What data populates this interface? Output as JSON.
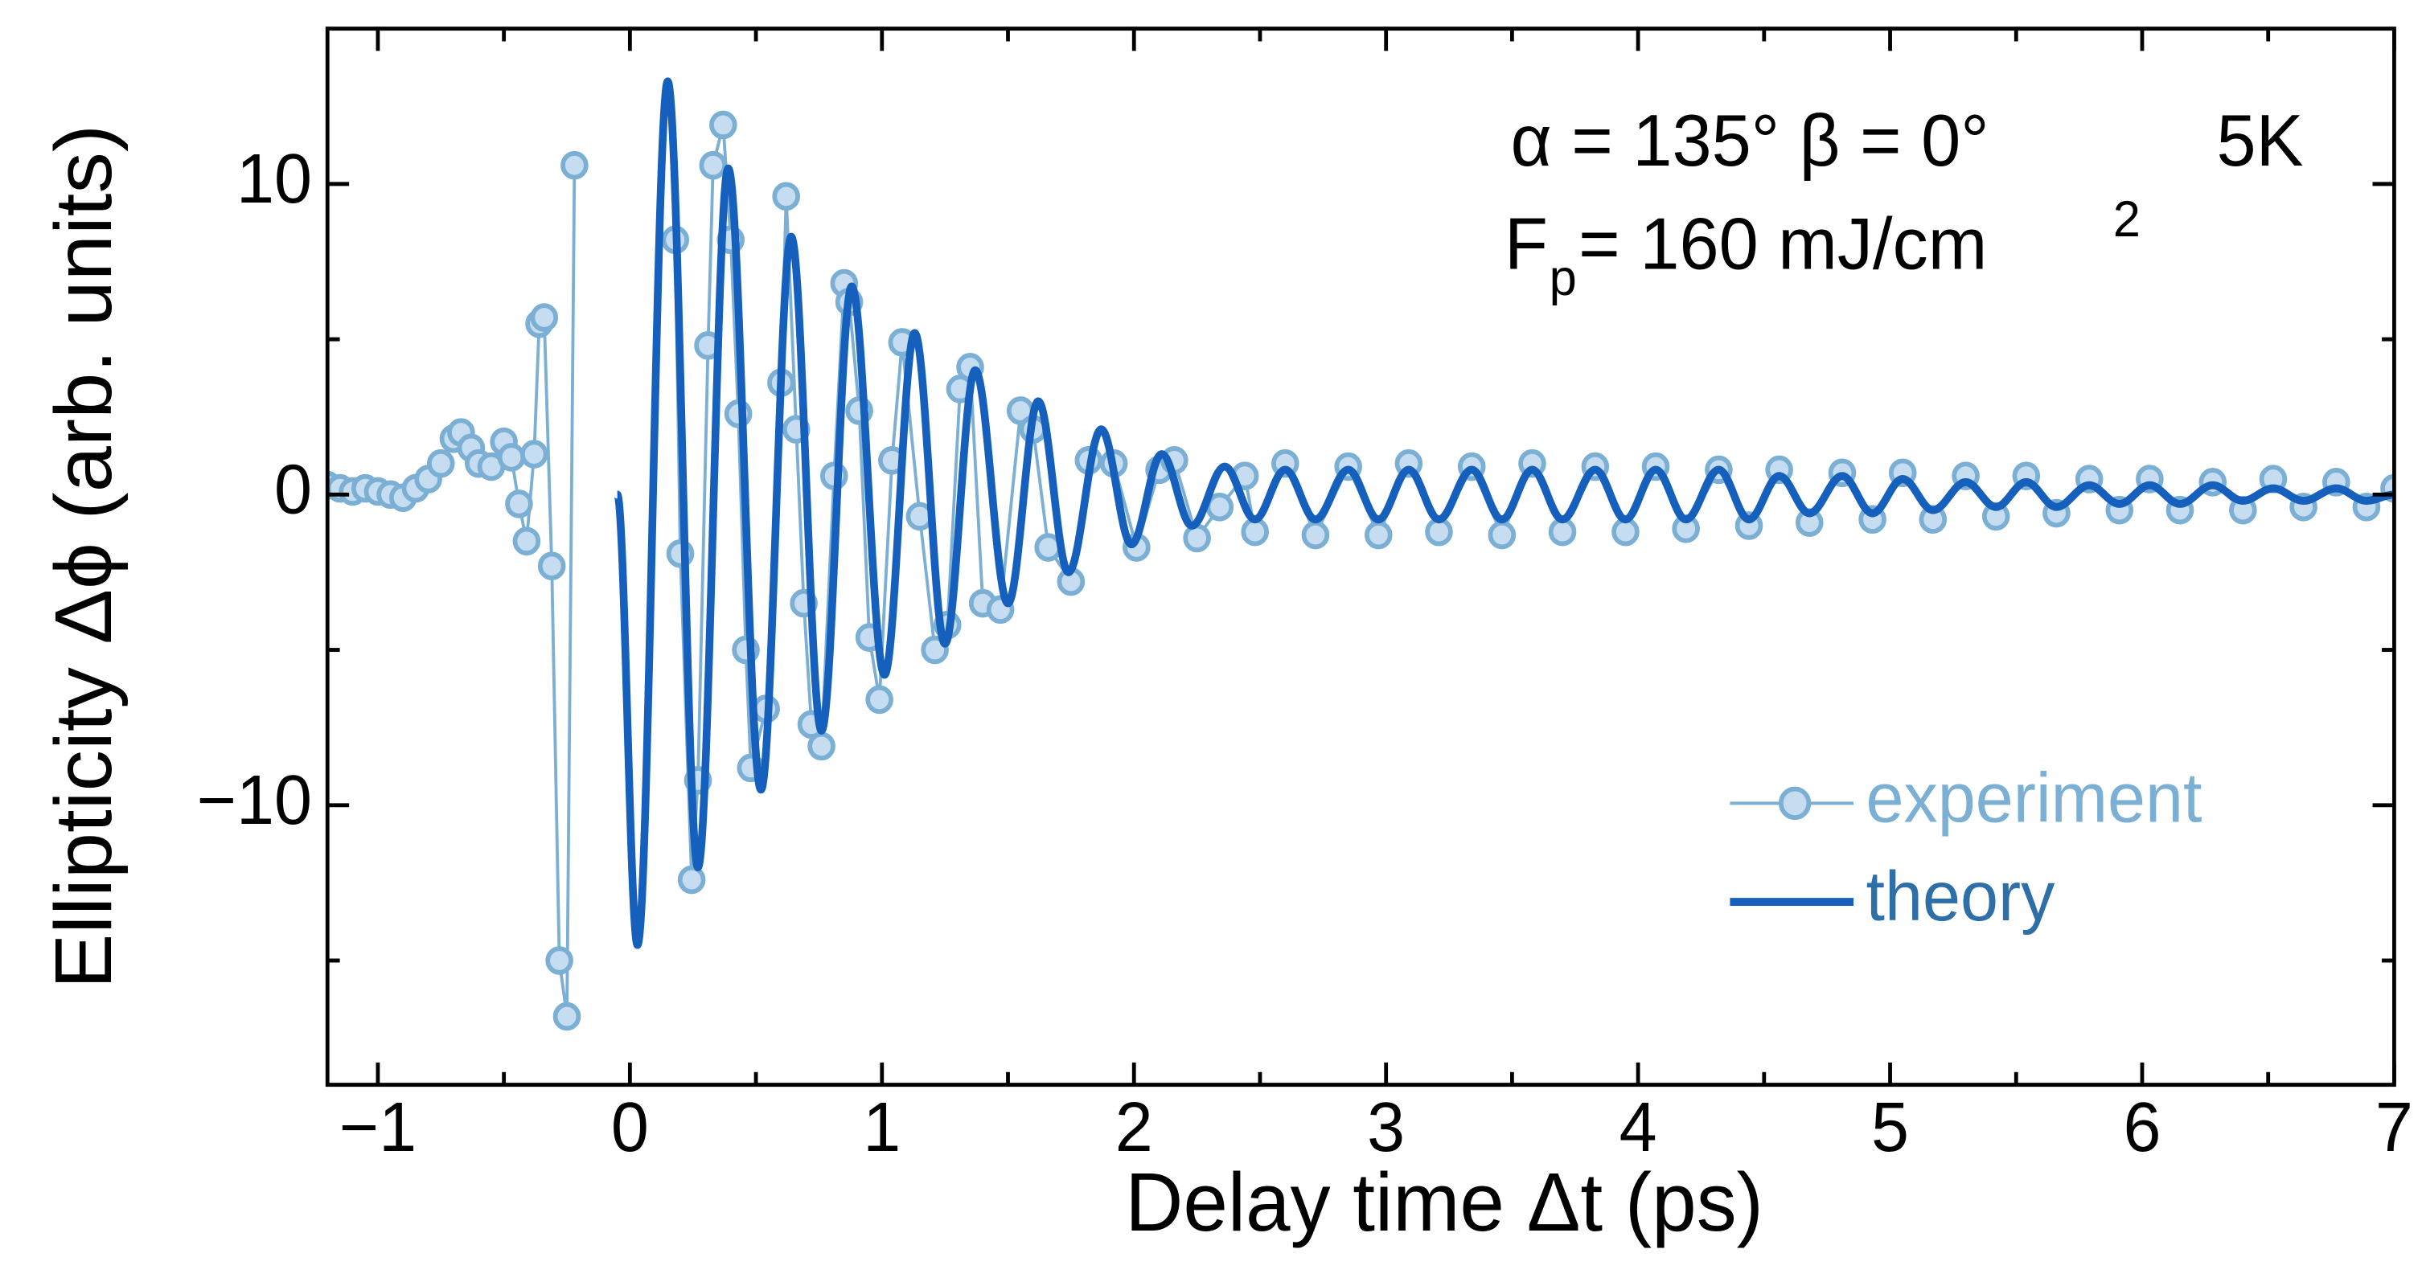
{
  "chart_data": {
    "type": "line",
    "xlabel": "Delay time Δt  (ps)",
    "ylabel": "Ellipticity Δϕ (arb. units)",
    "annotations": [
      "α = 135° β = 0°",
      "5K",
      "F",
      "p",
      "= 160 mJ/cm",
      "2"
    ],
    "xlim": [
      -1.2,
      7
    ],
    "ylim": [
      -19,
      15
    ],
    "xticks": [
      {
        "value": -1,
        "label": "−1"
      },
      0,
      1,
      2,
      3,
      4,
      5,
      6,
      7
    ],
    "xticks_minor": [
      -0.5,
      0.5,
      1.5,
      2.5,
      3.5,
      4.5,
      5.5,
      6.5
    ],
    "yticks": [
      {
        "value": -10,
        "label": "−10"
      },
      0,
      10
    ],
    "yticks_minor": [
      -15,
      -5,
      5
    ],
    "legend": "lower right",
    "series": [
      {
        "name": "experiment",
        "color": "#7bafd4",
        "marker": "o",
        "x": [
          -1.2,
          -1.15,
          -1.1,
          -1.05,
          -1.0,
          -0.95,
          -0.9,
          -0.85,
          -0.8,
          -0.75,
          -0.7,
          -0.67,
          -0.63,
          -0.6,
          -0.55,
          -0.5,
          -0.47,
          -0.44,
          -0.41,
          -0.38,
          -0.36,
          -0.34,
          -0.31,
          -0.28,
          -0.25,
          -0.22,
          -0.1,
          0.18,
          0.2,
          0.245,
          0.27,
          0.31,
          0.33,
          0.37,
          0.4,
          0.43,
          0.46,
          0.48,
          0.54,
          0.6,
          0.62,
          0.66,
          0.69,
          0.72,
          0.76,
          0.81,
          0.85,
          0.87,
          0.91,
          0.95,
          0.99,
          1.04,
          1.08,
          1.15,
          1.21,
          1.26,
          1.31,
          1.35,
          1.4,
          1.47,
          1.55,
          1.6,
          1.66,
          1.75,
          1.82,
          1.92,
          2.01,
          2.1,
          2.16,
          2.25,
          2.34,
          2.44,
          2.48,
          2.6,
          2.72,
          2.85,
          2.97,
          3.09,
          3.21,
          3.34,
          3.46,
          3.58,
          3.7,
          3.83,
          3.95,
          4.07,
          4.19,
          4.32,
          4.44,
          4.56,
          4.68,
          4.81,
          4.93,
          5.05,
          5.17,
          5.3,
          5.42,
          5.54,
          5.66,
          5.79,
          5.91,
          6.03,
          6.15,
          6.28,
          6.4,
          6.52,
          6.64,
          6.77,
          6.89,
          7.0
        ],
        "values": [
          0.3,
          0.2,
          0.1,
          0.2,
          0.1,
          0,
          -0.1,
          0.2,
          0.5,
          1.0,
          1.8,
          2.0,
          1.5,
          1.0,
          0.9,
          1.7,
          1.2,
          -0.3,
          -1.5,
          1.3,
          5.5,
          5.7,
          -2.3,
          -15,
          -16.8,
          10.6,
          null,
          8.2,
          -1.9,
          -12.4,
          -9.2,
          4.8,
          10.6,
          11.9,
          8.2,
          2.6,
          -5,
          -8.8,
          -6.9,
          3.6,
          9.6,
          2.1,
          -3.5,
          -7.4,
          -8.1,
          0.6,
          6.8,
          6.2,
          2.7,
          -4.6,
          -6.6,
          1.1,
          4.9,
          -0.7,
          -5,
          -4.2,
          3.4,
          4.1,
          -3.5,
          -3.7,
          2.7,
          2.1,
          -1.7,
          -2.8,
          1.1,
          1,
          -1.7,
          0.8,
          1.1,
          -1.4,
          -0.4,
          0.6,
          -1.2,
          1.0,
          -1.3,
          0.9,
          -1.3,
          1.0,
          -1.2,
          0.9,
          -1.3,
          1.0,
          -1.2,
          0.9,
          -1.2,
          0.9,
          -1.1,
          0.8,
          -1.0,
          0.8,
          -0.9,
          0.7,
          -0.8,
          0.7,
          -0.8,
          0.6,
          -0.7,
          0.6,
          -0.6,
          0.5,
          -0.5,
          0.5,
          -0.5,
          0.4,
          -0.5,
          0.5,
          -0.4,
          0.4,
          -0.4,
          0.2
        ]
      },
      {
        "name": "theory",
        "color": "#1560bd",
        "x": [
          -0.05,
          0.03,
          0.15,
          0.27,
          0.39,
          0.52,
          0.64,
          0.76,
          0.88,
          1.01,
          1.13,
          1.25,
          1.37,
          1.5,
          1.62,
          1.74,
          1.87,
          1.99,
          2.11,
          2.23,
          2.36,
          2.48,
          2.6,
          2.72,
          2.85,
          2.97,
          3.09,
          3.21,
          3.34,
          3.46,
          3.58,
          3.7,
          3.83,
          3.95,
          4.07,
          4.19,
          4.32,
          4.44,
          4.56,
          4.68,
          4.81,
          4.93,
          5.05,
          5.17,
          5.3,
          5.42,
          5.54,
          5.66,
          5.79,
          5.91,
          6.03,
          6.15,
          6.28,
          6.4,
          6.52,
          6.64,
          6.77,
          6.89,
          7.0
        ],
        "values": [
          0,
          -14.5,
          13.3,
          -12,
          10.5,
          -9.5,
          8.3,
          -7.6,
          6.7,
          -5.8,
          5.2,
          -4.8,
          4,
          -3.5,
          3,
          -2.5,
          2.1,
          -1.6,
          1.3,
          -1,
          0.9,
          -0.8,
          0.8,
          -0.8,
          0.8,
          -0.8,
          0.8,
          -0.8,
          0.8,
          -0.8,
          0.8,
          -0.8,
          0.8,
          -0.8,
          0.8,
          -0.8,
          0.8,
          -0.8,
          0.6,
          -0.6,
          0.6,
          -0.6,
          0.5,
          -0.5,
          0.4,
          -0.4,
          0.4,
          -0.4,
          0.3,
          -0.3,
          0.3,
          -0.3,
          0.3,
          -0.2,
          0.2,
          -0.2,
          0.2,
          -0.2,
          0
        ]
      }
    ]
  }
}
